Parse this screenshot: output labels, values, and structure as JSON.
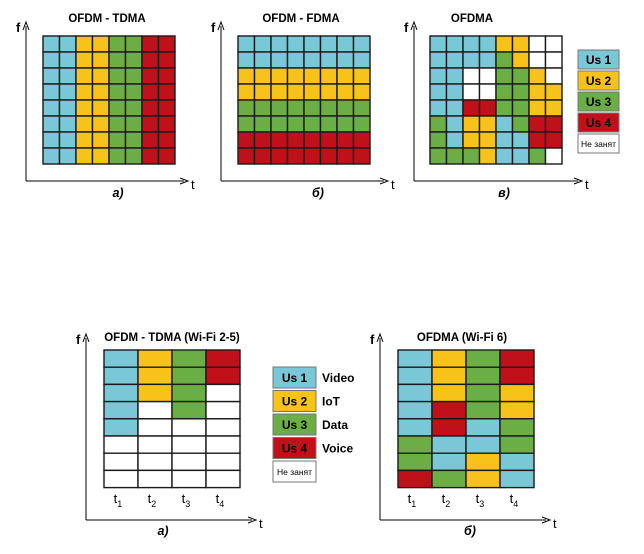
{
  "colors": {
    "us1": "#79C7D7",
    "us2": "#F7C31B",
    "us3": "#6AAE45",
    "us4": "#C0101A",
    "free": "#FFFFFF",
    "grid": "#1a1a1a"
  },
  "axis_labels": {
    "f": "f",
    "t": "t"
  },
  "top": {
    "panels": [
      {
        "title": "OFDM - TDMA",
        "caption": "а)",
        "grid": [
          [
            "us1",
            "us1",
            "us2",
            "us2",
            "us3",
            "us3",
            "us4",
            "us4"
          ],
          [
            "us1",
            "us1",
            "us2",
            "us2",
            "us3",
            "us3",
            "us4",
            "us4"
          ],
          [
            "us1",
            "us1",
            "us2",
            "us2",
            "us3",
            "us3",
            "us4",
            "us4"
          ],
          [
            "us1",
            "us1",
            "us2",
            "us2",
            "us3",
            "us3",
            "us4",
            "us4"
          ],
          [
            "us1",
            "us1",
            "us2",
            "us2",
            "us3",
            "us3",
            "us4",
            "us4"
          ],
          [
            "us1",
            "us1",
            "us2",
            "us2",
            "us3",
            "us3",
            "us4",
            "us4"
          ],
          [
            "us1",
            "us1",
            "us2",
            "us2",
            "us3",
            "us3",
            "us4",
            "us4"
          ],
          [
            "us1",
            "us1",
            "us2",
            "us2",
            "us3",
            "us3",
            "us4",
            "us4"
          ]
        ]
      },
      {
        "title": "OFDM - FDMA",
        "caption": "б)",
        "grid": [
          [
            "us1",
            "us1",
            "us1",
            "us1",
            "us1",
            "us1",
            "us1",
            "us1"
          ],
          [
            "us1",
            "us1",
            "us1",
            "us1",
            "us1",
            "us1",
            "us1",
            "us1"
          ],
          [
            "us2",
            "us2",
            "us2",
            "us2",
            "us2",
            "us2",
            "us2",
            "us2"
          ],
          [
            "us2",
            "us2",
            "us2",
            "us2",
            "us2",
            "us2",
            "us2",
            "us2"
          ],
          [
            "us3",
            "us3",
            "us3",
            "us3",
            "us3",
            "us3",
            "us3",
            "us3"
          ],
          [
            "us3",
            "us3",
            "us3",
            "us3",
            "us3",
            "us3",
            "us3",
            "us3"
          ],
          [
            "us4",
            "us4",
            "us4",
            "us4",
            "us4",
            "us4",
            "us4",
            "us4"
          ],
          [
            "us4",
            "us4",
            "us4",
            "us4",
            "us4",
            "us4",
            "us4",
            "us4"
          ]
        ]
      },
      {
        "title": "OFDMA",
        "caption": "в)",
        "grid": [
          [
            "us1",
            "us1",
            "us1",
            "us1",
            "us2",
            "us2",
            "free",
            "free"
          ],
          [
            "us1",
            "us1",
            "us1",
            "us1",
            "us3",
            "us2",
            "free",
            "free"
          ],
          [
            "us1",
            "us1",
            "free",
            "free",
            "us3",
            "us3",
            "us2",
            "free"
          ],
          [
            "us1",
            "us1",
            "free",
            "free",
            "us3",
            "us3",
            "us2",
            "us2"
          ],
          [
            "us1",
            "us1",
            "us4",
            "us4",
            "us3",
            "us3",
            "us2",
            "us2"
          ],
          [
            "us3",
            "us1",
            "us2",
            "us2",
            "us1",
            "us3",
            "us4",
            "us4"
          ],
          [
            "us3",
            "us1",
            "us2",
            "us2",
            "us1",
            "us1",
            "us4",
            "us4"
          ],
          [
            "us3",
            "us3",
            "us3",
            "us2",
            "us1",
            "us1",
            "us3",
            "free"
          ]
        ]
      }
    ],
    "legend": [
      {
        "key": "us1",
        "label": "Us 1"
      },
      {
        "key": "us2",
        "label": "Us 2"
      },
      {
        "key": "us3",
        "label": "Us 3"
      },
      {
        "key": "us4",
        "label": "Us 4"
      },
      {
        "key": "free",
        "label": "Не занят"
      }
    ]
  },
  "bottom": {
    "panels": [
      {
        "title": "OFDM - TDMA (Wi-Fi 2-5)",
        "caption": "а)",
        "time_slots": [
          "t1",
          "t2",
          "t3",
          "t4"
        ],
        "grid": [
          [
            "us1",
            "us2",
            "us3",
            "us4"
          ],
          [
            "us1",
            "us2",
            "us3",
            "us4"
          ],
          [
            "us1",
            "us2",
            "us3",
            "free"
          ],
          [
            "us1",
            "free",
            "us3",
            "free"
          ],
          [
            "us1",
            "free",
            "free",
            "free"
          ],
          [
            "free",
            "free",
            "free",
            "free"
          ],
          [
            "free",
            "free",
            "free",
            "free"
          ],
          [
            "free",
            "free",
            "free",
            "free"
          ]
        ]
      },
      {
        "title": "OFDMA (Wi-Fi 6)",
        "caption": "б)",
        "time_slots": [
          "t1",
          "t2",
          "t3",
          "t4"
        ],
        "grid": [
          [
            "us1",
            "us2",
            "us3",
            "us4"
          ],
          [
            "us1",
            "us2",
            "us3",
            "us4"
          ],
          [
            "us1",
            "us2",
            "us3",
            "us2"
          ],
          [
            "us1",
            "us4",
            "us3",
            "us2"
          ],
          [
            "us1",
            "us4",
            "us1",
            "us3"
          ],
          [
            "us3",
            "us1",
            "us1",
            "us3"
          ],
          [
            "us3",
            "us1",
            "us2",
            "us1"
          ],
          [
            "us4",
            "us3",
            "us2",
            "us1"
          ]
        ]
      }
    ],
    "legend": [
      {
        "key": "us1",
        "label": "Us 1",
        "desc": "Video"
      },
      {
        "key": "us2",
        "label": "Us 2",
        "desc": "IoT"
      },
      {
        "key": "us3",
        "label": "Us 3",
        "desc": "Data"
      },
      {
        "key": "us4",
        "label": "Us 4",
        "desc": "Voice"
      },
      {
        "key": "free",
        "label": "Не занят",
        "desc": ""
      }
    ]
  }
}
